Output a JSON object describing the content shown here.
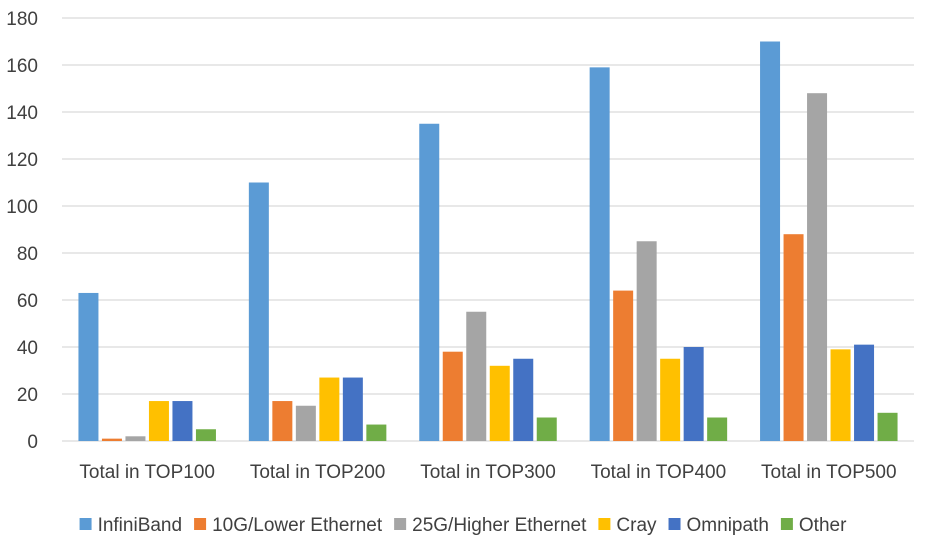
{
  "chart_data": {
    "type": "bar",
    "title": "",
    "xlabel": "",
    "ylabel": "",
    "ylim": [
      0,
      180
    ],
    "yticks": [
      0,
      20,
      40,
      60,
      80,
      100,
      120,
      140,
      160,
      180
    ],
    "grid": true,
    "legend_position": "bottom",
    "categories": [
      "Total in TOP100",
      "Total in TOP200",
      "Total in TOP300",
      "Total in TOP400",
      "Total in TOP500"
    ],
    "series": [
      {
        "name": "InfiniBand",
        "color": "#5B9BD5",
        "values": [
          63,
          110,
          135,
          159,
          170
        ]
      },
      {
        "name": "10G/Lower Ethernet",
        "color": "#ED7D31",
        "values": [
          1,
          17,
          38,
          64,
          88
        ]
      },
      {
        "name": "25G/Higher Ethernet",
        "color": "#A5A5A5",
        "values": [
          2,
          15,
          55,
          85,
          148
        ]
      },
      {
        "name": "Cray",
        "color": "#FFC000",
        "values": [
          17,
          27,
          32,
          35,
          39
        ]
      },
      {
        "name": "Omnipath",
        "color": "#4472C4",
        "values": [
          17,
          27,
          35,
          40,
          41
        ]
      },
      {
        "name": "Other",
        "color": "#70AD47",
        "values": [
          5,
          7,
          10,
          10,
          12
        ]
      }
    ]
  }
}
